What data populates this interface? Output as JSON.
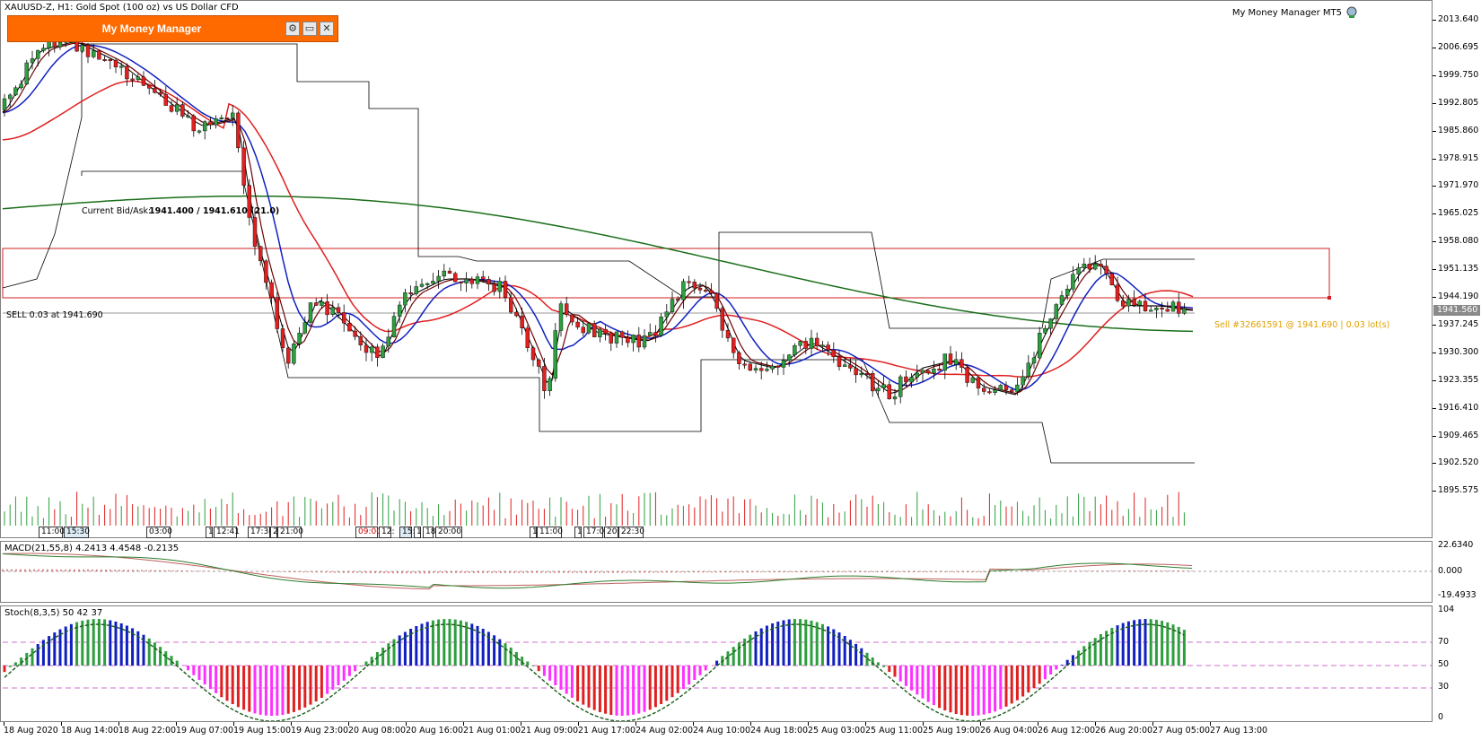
{
  "main": {
    "symbol_title": "XAUUSD-Z, H1:  Gold Spot (100 oz) vs US Dollar CFD",
    "ea_label": "My Money Manager MT5",
    "bid_ask_label": "Current Bid/Ask:",
    "bid_ask_value": "1941.400 / 1941.610 (21.0)",
    "sell_line_label": "SELL 0.03 at 1941.690",
    "sell_order_label": "Sell #32661591 @ 1941.690 | 0.03 lot(s)",
    "current_price": "1941.560",
    "price_ticks": [
      "2013.640",
      "2006.695",
      "1999.750",
      "1992.805",
      "1985.860",
      "1978.915",
      "1971.970",
      "1965.025",
      "1958.080",
      "1951.135",
      "1944.190",
      "1937.245",
      "1930.300",
      "1923.355",
      "1916.410",
      "1909.465",
      "1902.520",
      "1895.575"
    ],
    "session_labels": [
      {
        "text": "11:00",
        "style": "plain"
      },
      {
        "text": "15:30",
        "style": "blue"
      },
      {
        "text": "03:00",
        "style": "plain"
      },
      {
        "text": "1",
        "style": "plain"
      },
      {
        "text": "12:41",
        "style": "plain"
      },
      {
        "text": "17:30",
        "style": "plain"
      },
      {
        "text": "2",
        "style": "plain"
      },
      {
        "text": "21:00",
        "style": "plain"
      },
      {
        "text": "09:00",
        "style": "red"
      },
      {
        "text": "12:",
        "style": "plain"
      },
      {
        "text": "15:",
        "style": "blue"
      },
      {
        "text": "1",
        "style": "plain"
      },
      {
        "text": "18:",
        "style": "plain"
      },
      {
        "text": "20:00",
        "style": "plain"
      },
      {
        "text": "1",
        "style": "plain"
      },
      {
        "text": "11:00",
        "style": "plain"
      },
      {
        "text": "1",
        "style": "plain"
      },
      {
        "text": "17:00",
        "style": "plain"
      },
      {
        "text": "20:",
        "style": "plain"
      },
      {
        "text": "22:30",
        "style": "plain"
      }
    ]
  },
  "panel": {
    "title": "My Money Manager",
    "gear_icon": "gear-icon",
    "minimize_icon": "minimize-icon",
    "close_icon": "close-icon"
  },
  "macd": {
    "title": "MACD(21,55,8) 4.2413 4.4548 -0.2135",
    "ticks": [
      "22.6340",
      "0.000",
      "-19.4933"
    ]
  },
  "stoch": {
    "title": "Stoch(8,3,5) 50 42 37",
    "ticks": [
      "104",
      "70",
      "50",
      "30",
      "0"
    ]
  },
  "time_axis": [
    "18 Aug 2020",
    "18 Aug 14:00",
    "18 Aug 22:00",
    "19 Aug 07:00",
    "19 Aug 15:00",
    "19 Aug 23:00",
    "20 Aug 08:00",
    "20 Aug 16:00",
    "21 Aug 01:00",
    "21 Aug 09:00",
    "21 Aug 17:00",
    "24 Aug 02:00",
    "24 Aug 10:00",
    "24 Aug 18:00",
    "25 Aug 03:00",
    "25 Aug 11:00",
    "25 Aug 19:00",
    "26 Aug 04:00",
    "26 Aug 12:00",
    "26 Aug 20:00",
    "27 Aug 05:00",
    "27 Aug 13:00"
  ],
  "colors": {
    "bull": "#2e9e3e",
    "bear": "#e02020",
    "ma_blue": "#1020c0",
    "ma_red": "#e02020",
    "ma_green": "#1a6e1a",
    "ma_darkred": "#6b0000",
    "sell_text": "#e0a000",
    "panel": "#ff6a00"
  }
}
